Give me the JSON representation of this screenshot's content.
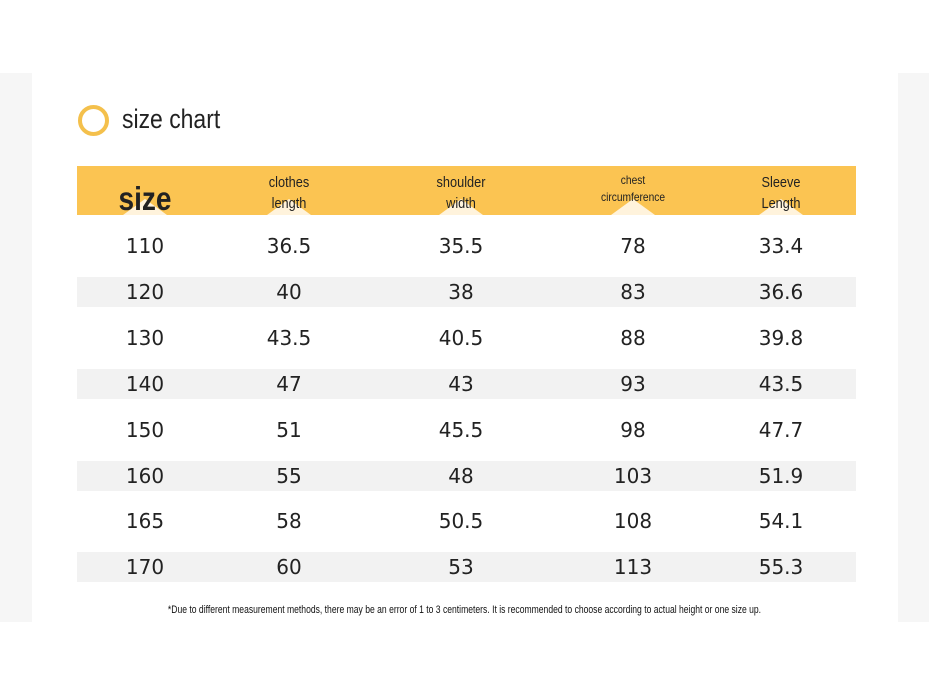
{
  "header": {
    "title": "size chart"
  },
  "table": {
    "headers": [
      [
        "size"
      ],
      [
        "clothes",
        "length"
      ],
      [
        "shoulder",
        "width"
      ],
      [
        "chest",
        "circumference"
      ],
      [
        "Sleeve",
        "Length"
      ]
    ],
    "rows": [
      [
        110,
        36.5,
        35.5,
        78,
        33.4
      ],
      [
        120,
        40,
        38,
        83,
        36.6
      ],
      [
        130,
        43.5,
        40.5,
        88,
        39.8
      ],
      [
        140,
        47,
        43,
        93,
        43.5
      ],
      [
        150,
        51,
        45.5,
        98,
        47.7
      ],
      [
        160,
        55,
        48,
        103,
        51.9
      ],
      [
        165,
        58,
        50.5,
        108,
        54.1
      ],
      [
        170,
        60,
        53,
        113,
        55.3
      ]
    ]
  },
  "note": "*Due to different measurement methods, there may be an error of 1 to 3 centimeters. It is recommended to choose according to actual height or one size up."
}
